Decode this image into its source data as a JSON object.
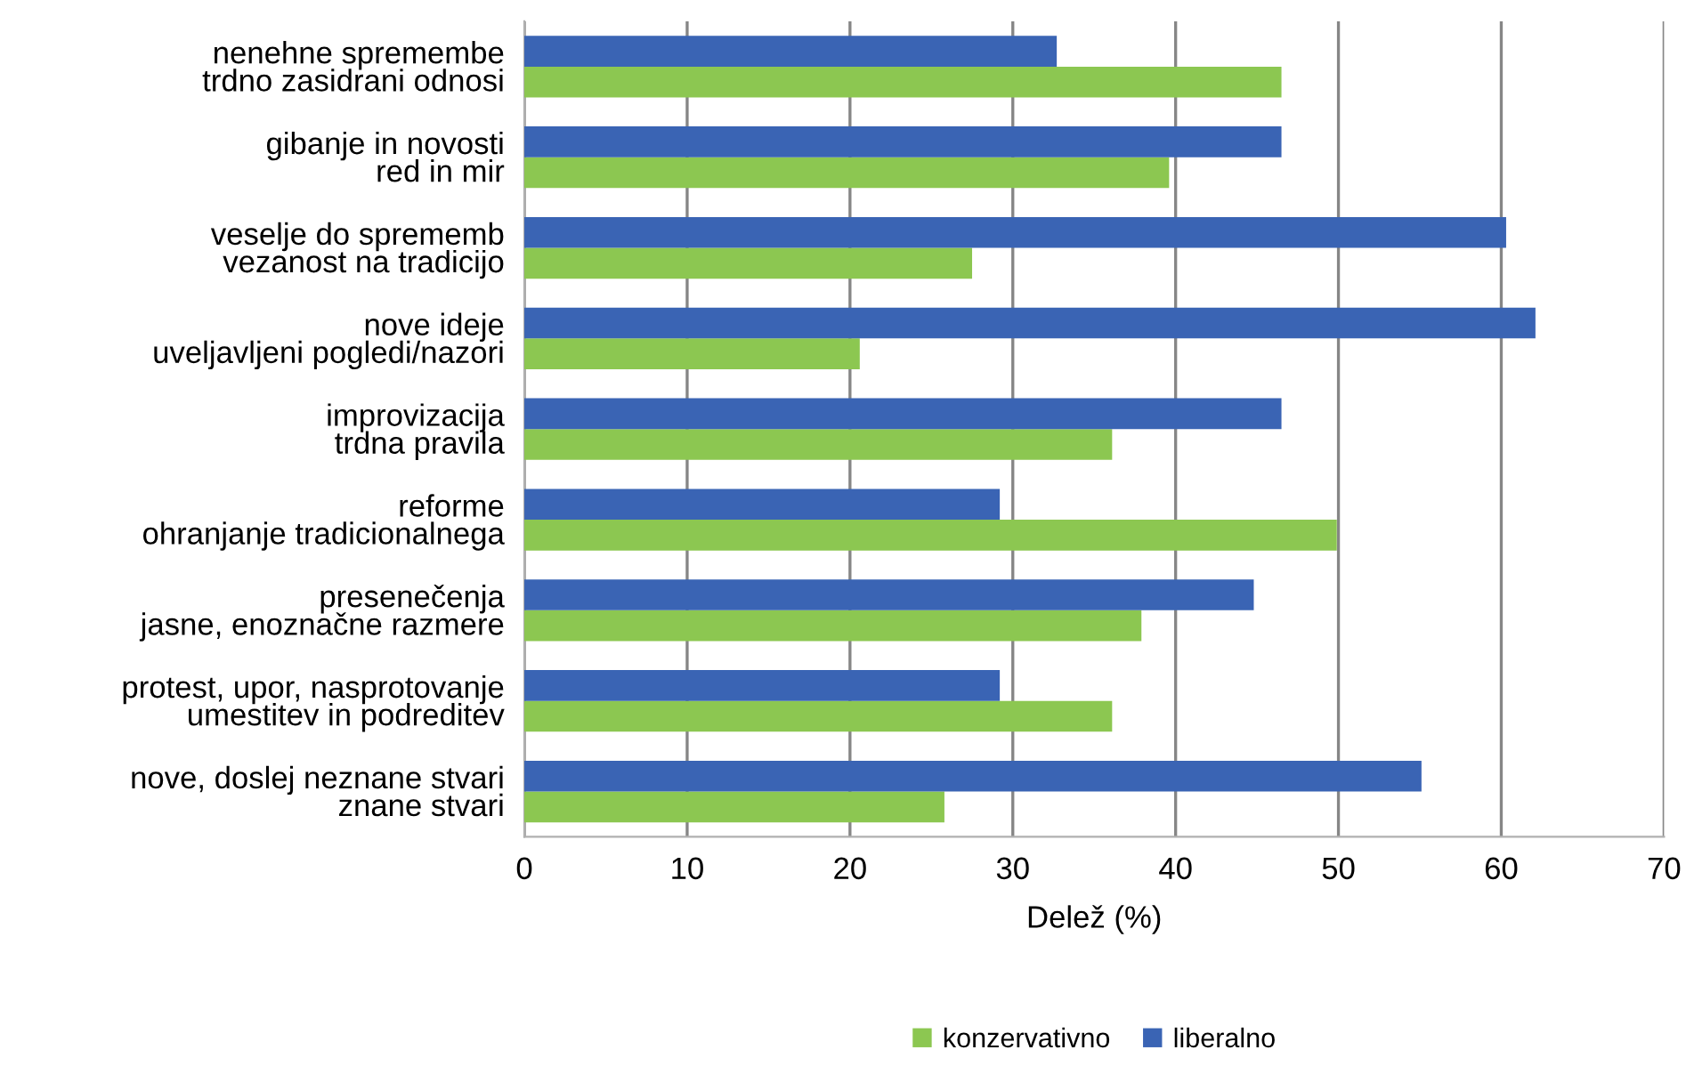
{
  "chart_data": {
    "type": "bar",
    "orientation": "horizontal",
    "xlabel": "Delež (%)",
    "categories": [
      "nenehne spremembe\ntrdno zasidrani odnosi",
      "gibanje in novosti\nred in mir",
      "veselje do sprememb\nvezanost na tradicijo",
      "nove ideje\nuveljavljeni pogledi/nazori",
      "improvizacija\ntrdna pravila",
      "reforme\nohranjanje tradicionalnega",
      "presenečenja\njasne, enoznačne razmere",
      "protest, upor, nasprotovanje\numestitev in podreditev",
      "nove, doslej neznane stvari\nznane stvari"
    ],
    "series": [
      {
        "name": "konzervativno",
        "color": "#8cc751",
        "values": [
          46.5,
          39.6,
          27.5,
          20.6,
          36.1,
          49.9,
          37.9,
          36.1,
          25.8
        ]
      },
      {
        "name": "liberalno",
        "color": "#3a64b4",
        "values": [
          32.7,
          46.5,
          60.3,
          62.1,
          46.5,
          29.2,
          44.8,
          29.2,
          55.1
        ]
      }
    ],
    "xlim": [
      0,
      70
    ],
    "xticks": [
      0,
      10,
      20,
      30,
      40,
      50,
      60,
      70
    ],
    "grid": "x",
    "legend": "bottom"
  }
}
